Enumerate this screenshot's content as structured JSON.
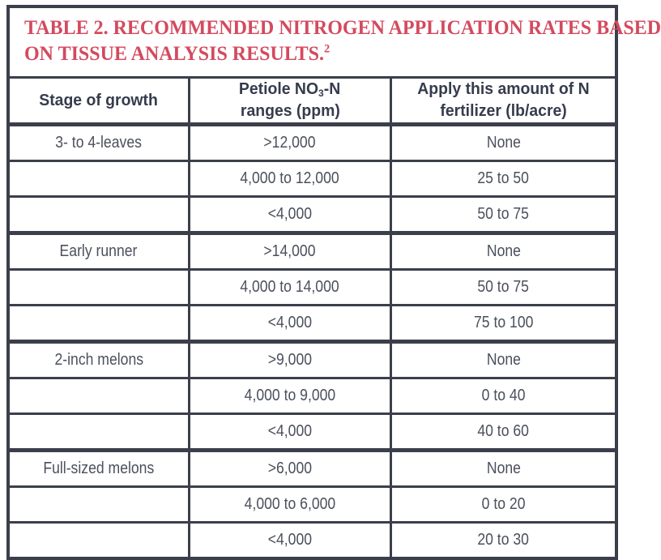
{
  "document": {
    "title": {
      "line1": "TABLE 2. RECOMMENDED NITROGEN APPLICATION RATES BASED",
      "line2": "ON TISSUE ANALYSIS RESULTS.",
      "footnote_marker": "2"
    }
  },
  "colors": {
    "title_red": "#d44a5e",
    "border_dark": "#3b3f4b",
    "header_text": "#363c4d",
    "body_text": "#4b505c"
  },
  "chart_data": {
    "type": "table",
    "title": "TABLE 2. RECOMMENDED NITROGEN APPLICATION RATES BASED ON TISSUE ANALYSIS RESULTS.",
    "columns": [
      "Stage of growth",
      "Petiole NO3-N ranges (ppm)",
      "Apply this amount of N fertilizer (lb/acre)"
    ],
    "rows": [
      [
        "3- to 4-leaves",
        ">12,000",
        "None"
      ],
      [
        "",
        "4,000 to 12,000",
        "25 to 50"
      ],
      [
        "",
        "<4,000",
        "50 to 75"
      ],
      [
        "Early runner",
        ">14,000",
        "None"
      ],
      [
        "",
        "4,000 to 14,000",
        "50 to 75"
      ],
      [
        "",
        "<4,000",
        "75 to 100"
      ],
      [
        "2-inch melons",
        ">9,000",
        "None"
      ],
      [
        "",
        "4,000 to 9,000",
        "0 to 40"
      ],
      [
        "",
        "<4,000",
        "40 to 60"
      ],
      [
        "Full-sized melons",
        ">6,000",
        "None"
      ],
      [
        "",
        "4,000 to 6,000",
        "0 to 20"
      ],
      [
        "",
        "<4,000",
        "20 to 30"
      ]
    ]
  },
  "table": {
    "headers": {
      "stage": "Stage of growth",
      "petiole_pre": "Petiole NO",
      "petiole_sub": "3",
      "petiole_post": "-N",
      "petiole_line2": "ranges (ppm)",
      "apply_line1": "Apply this amount of N",
      "apply_line2": "fertilizer (lb/acre)"
    },
    "rows": [
      {
        "stage": "3- to 4-leaves",
        "range": ">12,000",
        "apply": "None"
      },
      {
        "stage": "",
        "range": "4,000 to 12,000",
        "apply": "25 to 50"
      },
      {
        "stage": "",
        "range": "<4,000",
        "apply": "50 to 75"
      },
      {
        "stage": "Early runner",
        "range": ">14,000",
        "apply": "None"
      },
      {
        "stage": "",
        "range": "4,000 to 14,000",
        "apply": "50 to 75"
      },
      {
        "stage": "",
        "range": "<4,000",
        "apply": "75 to 100"
      },
      {
        "stage": "2-inch melons",
        "range": ">9,000",
        "apply": "None"
      },
      {
        "stage": "",
        "range": "4,000 to 9,000",
        "apply": "0 to 40"
      },
      {
        "stage": "",
        "range": "<4,000",
        "apply": "40 to 60"
      },
      {
        "stage": "Full-sized melons",
        "range": ">6,000",
        "apply": "None"
      },
      {
        "stage": "",
        "range": "4,000 to 6,000",
        "apply": "0 to 20"
      },
      {
        "stage": "",
        "range": "<4,000",
        "apply": "20 to 30"
      }
    ]
  }
}
